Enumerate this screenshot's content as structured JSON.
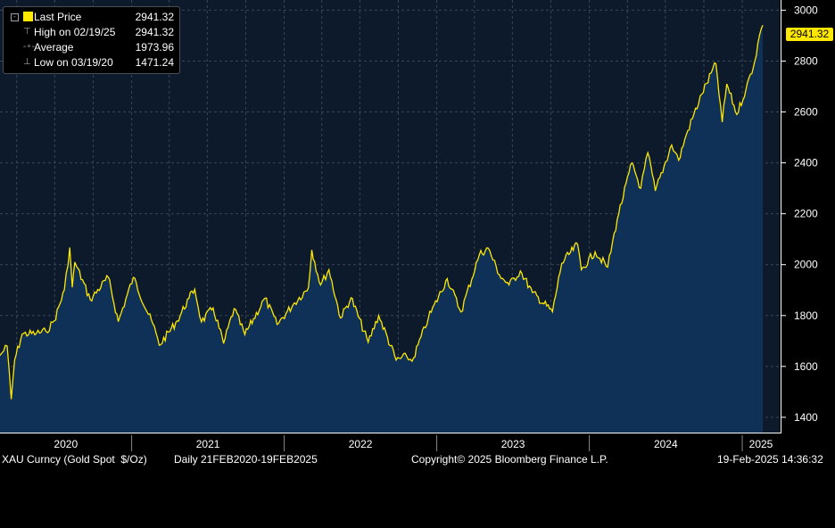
{
  "legend": {
    "items": [
      {
        "label": "Last Price",
        "value": "2941.32",
        "icon": "yellow-square"
      },
      {
        "label": "High on 02/19/25",
        "value": "2941.32",
        "icon": "high-marker-icon"
      },
      {
        "label": "Average",
        "value": "1973.96",
        "icon": "average-line-icon"
      },
      {
        "label": "Low on 03/19/20",
        "value": "1471.24",
        "icon": "low-marker-icon"
      }
    ]
  },
  "last_price_tag": "2941.32",
  "footer": {
    "ticker": "XAU Curncy (Gold Spot  $/Oz)",
    "range": "Daily 21FEB2020-19FEB2025",
    "copyright": "Copyright© 2025 Bloomberg Finance L.P.",
    "timestamp": "19-Feb-2025 14:36:32"
  },
  "colors": {
    "line": "#ffe800",
    "area": "#0f3157",
    "background": "#0c1a2c",
    "grid": "#3a4657",
    "axis_text": "#ffffff"
  },
  "chart_data": {
    "type": "area",
    "x_tick_labels": [
      "2020",
      "2021",
      "2022",
      "2023",
      "2024",
      "2025"
    ],
    "y_ticks": [
      1400,
      1600,
      1800,
      2000,
      2200,
      2400,
      2600,
      2800,
      3000
    ],
    "ylim": [
      1340,
      3040
    ],
    "xlim": [
      "2020-02-21",
      "2025-02-19"
    ],
    "grid": true,
    "series": [
      {
        "name": "Last Price",
        "points": [
          [
            "2020-02-21",
            1643
          ],
          [
            "2020-03-09",
            1680
          ],
          [
            "2020-03-19",
            1471
          ],
          [
            "2020-03-27",
            1625
          ],
          [
            "2020-04-14",
            1727
          ],
          [
            "2020-05-18",
            1730
          ],
          [
            "2020-06-10",
            1738
          ],
          [
            "2020-06-30",
            1780
          ],
          [
            "2020-07-24",
            1900
          ],
          [
            "2020-08-06",
            2067
          ],
          [
            "2020-08-12",
            1911
          ],
          [
            "2020-08-18",
            2010
          ],
          [
            "2020-09-24",
            1862
          ],
          [
            "2020-11-06",
            1951
          ],
          [
            "2020-11-30",
            1776
          ],
          [
            "2021-01-05",
            1950
          ],
          [
            "2021-02-28",
            1734
          ],
          [
            "2021-03-08",
            1683
          ],
          [
            "2021-04-20",
            1779
          ],
          [
            "2021-05-18",
            1868
          ],
          [
            "2021-06-01",
            1903
          ],
          [
            "2021-06-17",
            1775
          ],
          [
            "2021-07-15",
            1830
          ],
          [
            "2021-08-09",
            1690
          ],
          [
            "2021-09-03",
            1827
          ],
          [
            "2021-09-29",
            1725
          ],
          [
            "2021-11-16",
            1868
          ],
          [
            "2021-12-15",
            1765
          ],
          [
            "2022-01-26",
            1850
          ],
          [
            "2022-02-28",
            1909
          ],
          [
            "2022-03-08",
            2058
          ],
          [
            "2022-03-29",
            1920
          ],
          [
            "2022-04-18",
            1980
          ],
          [
            "2022-05-16",
            1790
          ],
          [
            "2022-06-10",
            1870
          ],
          [
            "2022-07-21",
            1695
          ],
          [
            "2022-08-15",
            1800
          ],
          [
            "2022-09-26",
            1625
          ],
          [
            "2022-10-21",
            1640
          ],
          [
            "2022-11-03",
            1620
          ],
          [
            "2022-12-12",
            1790
          ],
          [
            "2023-01-26",
            1945
          ],
          [
            "2023-02-28",
            1814
          ],
          [
            "2023-04-13",
            2040
          ],
          [
            "2023-05-04",
            2065
          ],
          [
            "2023-05-31",
            1960
          ],
          [
            "2023-06-23",
            1920
          ],
          [
            "2023-07-20",
            1975
          ],
          [
            "2023-08-18",
            1890
          ],
          [
            "2023-10-05",
            1815
          ],
          [
            "2023-10-27",
            2005
          ],
          [
            "2023-12-04",
            2080
          ],
          [
            "2023-12-13",
            1980
          ],
          [
            "2024-01-15",
            2050
          ],
          [
            "2024-02-14",
            1990
          ],
          [
            "2024-03-08",
            2180
          ],
          [
            "2024-04-12",
            2400
          ],
          [
            "2024-05-03",
            2300
          ],
          [
            "2024-05-20",
            2440
          ],
          [
            "2024-06-07",
            2290
          ],
          [
            "2024-07-16",
            2470
          ],
          [
            "2024-08-02",
            2410
          ],
          [
            "2024-08-20",
            2510
          ],
          [
            "2024-09-26",
            2670
          ],
          [
            "2024-10-30",
            2790
          ],
          [
            "2024-11-14",
            2560
          ],
          [
            "2024-11-25",
            2710
          ],
          [
            "2024-12-19",
            2590
          ],
          [
            "2025-01-10",
            2690
          ],
          [
            "2025-01-31",
            2800
          ],
          [
            "2025-02-11",
            2900
          ],
          [
            "2025-02-19",
            2941
          ]
        ]
      }
    ]
  }
}
